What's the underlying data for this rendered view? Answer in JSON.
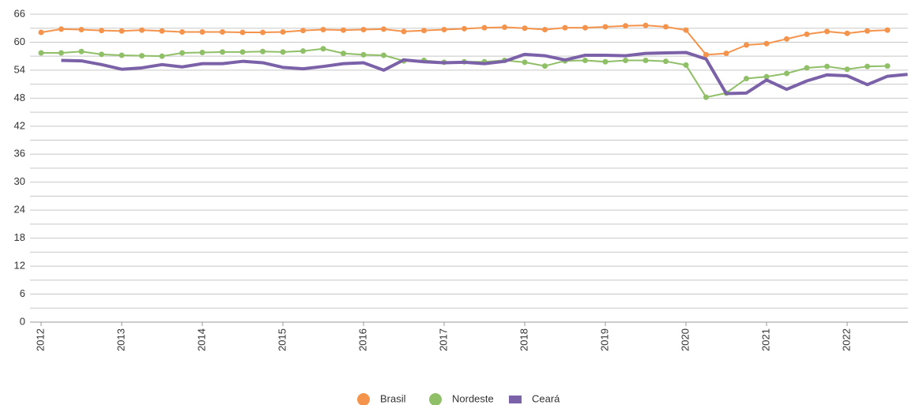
{
  "chart_data": {
    "type": "line",
    "categories": [
      "2012",
      null,
      null,
      null,
      "2013",
      null,
      null,
      null,
      "2014",
      null,
      null,
      null,
      "2015",
      null,
      null,
      null,
      "2016",
      null,
      null,
      null,
      "2017",
      null,
      null,
      null,
      "2018",
      null,
      null,
      null,
      "2019",
      null,
      null,
      null,
      "2020",
      null,
      null,
      null,
      "2021",
      null,
      null,
      null,
      "2022",
      null,
      null,
      null
    ],
    "series": [
      {
        "name": "Brasil",
        "color": "#f4944c",
        "marker": "circle",
        "values": [
          62.1,
          62.8,
          62.7,
          62.5,
          62.4,
          62.6,
          62.4,
          62.2,
          62.2,
          62.2,
          62.1,
          62.1,
          62.2,
          62.5,
          62.7,
          62.6,
          62.7,
          62.8,
          62.3,
          62.5,
          62.7,
          62.9,
          63.1,
          63.2,
          63.0,
          62.7,
          63.1,
          63.1,
          63.3,
          63.5,
          63.6,
          63.3,
          62.6,
          57.3,
          57.6,
          59.4,
          59.7,
          60.7,
          61.7,
          62.3,
          61.9,
          62.4,
          62.6,
          null
        ]
      },
      {
        "name": "Nordeste",
        "color": "#8fbf66",
        "marker": "circle",
        "values": [
          57.7,
          57.7,
          58.0,
          57.4,
          57.2,
          57.1,
          57.0,
          57.7,
          57.8,
          57.9,
          57.9,
          58.0,
          57.9,
          58.1,
          58.6,
          57.6,
          57.3,
          57.2,
          56.0,
          56.1,
          55.7,
          55.8,
          55.8,
          56.1,
          55.7,
          54.9,
          56.0,
          56.1,
          55.8,
          56.1,
          56.1,
          55.9,
          55.1,
          48.2,
          49.1,
          52.2,
          52.6,
          53.3,
          54.5,
          54.8,
          54.2,
          54.8,
          54.9,
          null
        ]
      },
      {
        "name": "Ceará",
        "color": "#7b62a8",
        "marker": "none",
        "values": [
          null,
          56.1,
          56.0,
          55.2,
          54.2,
          54.5,
          55.2,
          54.7,
          55.4,
          55.4,
          55.9,
          55.6,
          54.6,
          54.3,
          54.8,
          55.4,
          55.6,
          54.0,
          56.2,
          55.8,
          55.6,
          55.7,
          55.4,
          55.9,
          57.4,
          57.1,
          56.2,
          57.2,
          57.2,
          57.1,
          57.6,
          57.7,
          57.8,
          56.4,
          49.0,
          49.1,
          51.9,
          49.9,
          51.7,
          53.0,
          52.8,
          50.9,
          52.7,
          53.1
        ]
      }
    ],
    "ylim": [
      0,
      66
    ],
    "yticks": [
      0,
      6,
      12,
      18,
      24,
      30,
      36,
      42,
      48,
      54,
      60,
      66
    ],
    "minor_grid": [
      3,
      9,
      15,
      21,
      27,
      33,
      39,
      45,
      51,
      57,
      63
    ],
    "grid": true,
    "legend": "bottom"
  }
}
